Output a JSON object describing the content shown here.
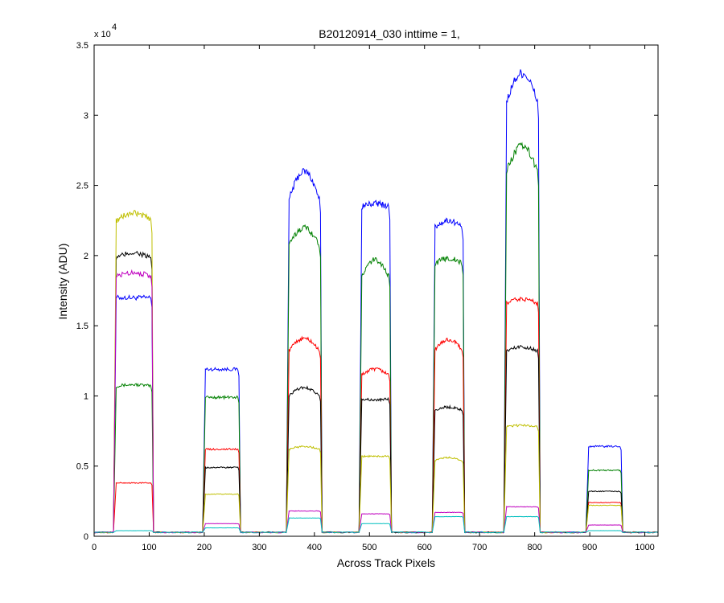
{
  "chart_data": {
    "type": "line",
    "title": "B20120914_030 inttime = 1,",
    "xlabel": "Across Track Pixels",
    "ylabel": "Intensity (ADU)",
    "y_multiplier_base": "x 10",
    "y_multiplier_exp": "4",
    "xlim": [
      0,
      1024
    ],
    "ylim": [
      0,
      3.5
    ],
    "y_scale": 10000,
    "x_ticks": [
      0,
      100,
      200,
      300,
      400,
      500,
      600,
      700,
      800,
      900,
      1000
    ],
    "x_tick_labels": [
      "0",
      "100",
      "200",
      "300",
      "400",
      "500",
      "600",
      "700",
      "800",
      "900",
      "1000"
    ],
    "y_ticks": [
      0,
      0.5,
      1,
      1.5,
      2,
      2.5,
      3,
      3.5
    ],
    "y_tick_labels": [
      "0",
      "0.5",
      "1",
      "1.5",
      "2",
      "2.5",
      "3",
      "3.5"
    ],
    "grid": false,
    "baseline": 280,
    "segments": [
      {
        "start": 35,
        "end": 108
      },
      {
        "start": 197,
        "end": 266
      },
      {
        "start": 349,
        "end": 414
      },
      {
        "start": 481,
        "end": 540
      },
      {
        "start": 614,
        "end": 673
      },
      {
        "start": 744,
        "end": 810
      },
      {
        "start": 893,
        "end": 960
      }
    ],
    "series": [
      {
        "color": "#0000ff",
        "levels": [
          [
            17000,
            17000
          ],
          [
            11900,
            11900
          ],
          [
            24000,
            26000
          ],
          [
            23500,
            23700
          ],
          [
            22000,
            22500
          ],
          [
            31000,
            33000
          ],
          [
            6400,
            6400
          ]
        ]
      },
      {
        "color": "#008000",
        "levels": [
          [
            10700,
            10800
          ],
          [
            9900,
            9900
          ],
          [
            20700,
            22000
          ],
          [
            18500,
            19700
          ],
          [
            19400,
            19800
          ],
          [
            26000,
            27800
          ],
          [
            4700,
            4700
          ]
        ]
      },
      {
        "color": "#ff0000",
        "levels": [
          [
            3800,
            3800
          ],
          [
            6200,
            6200
          ],
          [
            13200,
            14100
          ],
          [
            11500,
            11900
          ],
          [
            13300,
            14000
          ],
          [
            16600,
            16900
          ],
          [
            2400,
            2400
          ]
        ]
      },
      {
        "color": "#000000",
        "levels": [
          [
            19800,
            20200
          ],
          [
            4900,
            4900
          ],
          [
            10000,
            10600
          ],
          [
            9800,
            9700
          ],
          [
            9000,
            9200
          ],
          [
            13200,
            13500
          ],
          [
            3200,
            3200
          ]
        ]
      },
      {
        "color": "#bfbf00",
        "levels": [
          [
            22500,
            23000
          ],
          [
            3000,
            3000
          ],
          [
            6200,
            6400
          ],
          [
            5700,
            5700
          ],
          [
            5400,
            5600
          ],
          [
            7800,
            7900
          ],
          [
            2200,
            2200
          ]
        ]
      },
      {
        "color": "#bf00bf",
        "levels": [
          [
            18500,
            18800
          ],
          [
            900,
            900
          ],
          [
            1800,
            1800
          ],
          [
            1600,
            1600
          ],
          [
            1700,
            1700
          ],
          [
            2100,
            2100
          ],
          [
            800,
            800
          ]
        ]
      },
      {
        "color": "#00bfbf",
        "levels": [
          [
            400,
            400
          ],
          [
            600,
            600
          ],
          [
            1300,
            1300
          ],
          [
            900,
            900
          ],
          [
            1400,
            1400
          ],
          [
            1400,
            1400
          ],
          [
            400,
            400
          ]
        ]
      }
    ]
  }
}
